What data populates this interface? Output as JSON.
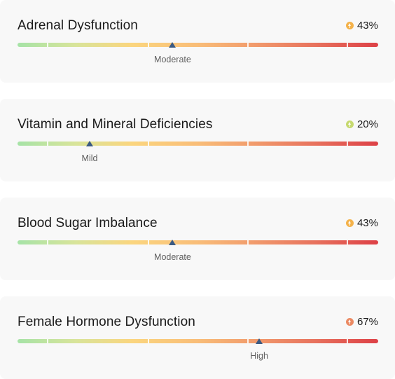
{
  "items": [
    {
      "title": "Adrenal Dysfunction",
      "percent": "43%",
      "level": "Moderate",
      "value_pct": 43,
      "icon_color": "#f4b24a",
      "icon": "arrow-up-circle-icon"
    },
    {
      "title": "Vitamin and Mineral Deficiencies",
      "percent": "20%",
      "level": "Mild",
      "value_pct": 20,
      "icon_color": "#c6d96f",
      "icon": "arrow-up-circle-icon"
    },
    {
      "title": "Blood Sugar Imbalance",
      "percent": "43%",
      "level": "Moderate",
      "value_pct": 43,
      "icon_color": "#f4b24a",
      "icon": "arrow-up-circle-icon"
    },
    {
      "title": "Female Hormone Dysfunction",
      "percent": "67%",
      "level": "High",
      "value_pct": 67,
      "icon_color": "#eb8a63",
      "icon": "arrow-up-circle-icon"
    }
  ]
}
